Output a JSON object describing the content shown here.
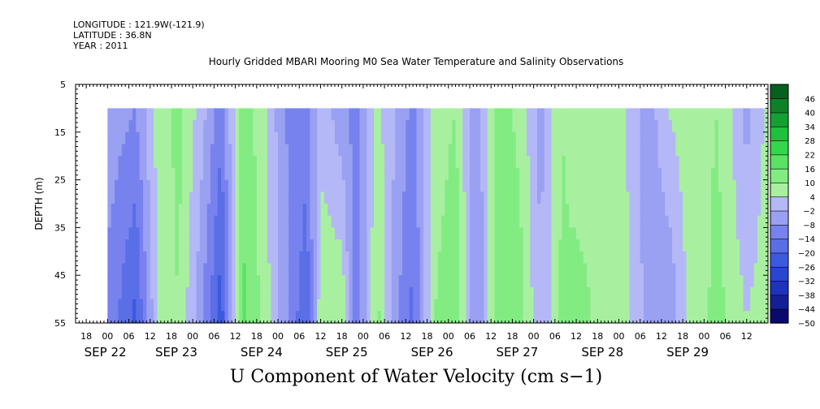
{
  "header": {
    "longitude": "LONGITUDE : 121.9W(-121.9)",
    "latitude": "LATITUDE : 36.8N",
    "year": "YEAR : 2011"
  },
  "chart_data": {
    "type": "heatmap",
    "title": "Hourly Gridded MBARI Mooring M0 Sea Water Temperature and Salinity Observations",
    "xlabel": "U Component of Water Velocity (cm s−1)",
    "ylabel": "DEPTH (m)",
    "ylim": [
      5,
      55
    ],
    "y_inverted": true,
    "yticks": [
      5,
      15,
      25,
      35,
      45,
      55
    ],
    "data_depth_range": [
      10,
      55
    ],
    "x_range_hours": [
      -9,
      186
    ],
    "data_hour_range": [
      0,
      186
    ],
    "hour_ticks": [
      -6,
      0,
      6,
      12,
      18,
      24,
      30,
      36,
      42,
      48,
      54,
      60,
      66,
      72,
      78,
      84,
      90,
      96,
      102,
      108,
      114,
      120,
      126,
      132,
      138,
      144,
      150,
      156,
      162,
      168,
      174,
      180
    ],
    "hour_tick_labels": [
      "18",
      "00",
      "06",
      "12",
      "18",
      "00",
      "06",
      "12",
      "18",
      "00",
      "06",
      "12",
      "18",
      "00",
      "06",
      "12",
      "18",
      "00",
      "06",
      "12",
      "18",
      "00",
      "06",
      "12",
      "18",
      "00",
      "06",
      "12",
      "18",
      "00",
      "06",
      "12"
    ],
    "day_labels": [
      {
        "hour": -2,
        "label": "SEP 22"
      },
      {
        "hour": 18,
        "label": "SEP 23"
      },
      {
        "hour": 42,
        "label": "SEP 24"
      },
      {
        "hour": 66,
        "label": "SEP 25"
      },
      {
        "hour": 90,
        "label": "SEP 26"
      },
      {
        "hour": 114,
        "label": "SEP 27"
      },
      {
        "hour": 138,
        "label": "SEP 28"
      },
      {
        "hour": 162,
        "label": "SEP 29"
      }
    ],
    "colorbar": {
      "levels": [
        -50,
        -44,
        -38,
        -32,
        -26,
        -20,
        -14,
        -8,
        -2,
        4,
        10,
        16,
        22,
        28,
        34,
        40,
        46
      ],
      "labels": [
        "46",
        "40",
        "34",
        "28",
        "22",
        "16",
        "10",
        "4",
        "−2",
        "−8",
        "−14",
        "−20",
        "−26",
        "−32",
        "−38",
        "−44",
        "−50"
      ],
      "colors_low_to_high": [
        "#0a0a6e",
        "#141e96",
        "#1e32be",
        "#2846d2",
        "#3c5ae0",
        "#5a6ee6",
        "#7882ee",
        "#9aa0f2",
        "#b4b8f6",
        "#a8f0a0",
        "#82ec82",
        "#5ae264",
        "#32d84a",
        "#1ec03c",
        "#14a032",
        "#0e8028",
        "#08601e"
      ]
    },
    "velocity_by_hour": [
      {
        "hour": 0,
        "surface": -4,
        "bottom": -10
      },
      {
        "hour": 8,
        "surface": -8,
        "bottom": -22
      },
      {
        "hour": 14,
        "surface": 6,
        "bottom": 4
      },
      {
        "hour": 20,
        "surface": 12,
        "bottom": 10
      },
      {
        "hour": 26,
        "surface": 2,
        "bottom": -6
      },
      {
        "hour": 32,
        "surface": -12,
        "bottom": -24
      },
      {
        "hour": 38,
        "surface": 14,
        "bottom": 18
      },
      {
        "hour": 44,
        "surface": 6,
        "bottom": 8
      },
      {
        "hour": 50,
        "surface": -8,
        "bottom": -6
      },
      {
        "hour": 56,
        "surface": -10,
        "bottom": -20
      },
      {
        "hour": 60,
        "surface": 2,
        "bottom": 8
      },
      {
        "hour": 66,
        "surface": -6,
        "bottom": 10
      },
      {
        "hour": 70,
        "surface": -10,
        "bottom": -14
      },
      {
        "hour": 76,
        "surface": 6,
        "bottom": 12
      },
      {
        "hour": 82,
        "surface": -4,
        "bottom": -8
      },
      {
        "hour": 86,
        "surface": -10,
        "bottom": -16
      },
      {
        "hour": 92,
        "surface": 6,
        "bottom": 10
      },
      {
        "hour": 98,
        "surface": 10,
        "bottom": 16
      },
      {
        "hour": 104,
        "surface": -6,
        "bottom": -10
      },
      {
        "hour": 110,
        "surface": 14,
        "bottom": 16
      },
      {
        "hour": 116,
        "surface": 8,
        "bottom": 14
      },
      {
        "hour": 122,
        "surface": -4,
        "bottom": -2
      },
      {
        "hour": 128,
        "surface": 10,
        "bottom": 12
      },
      {
        "hour": 132,
        "surface": 4,
        "bottom": 14
      },
      {
        "hour": 138,
        "surface": 10,
        "bottom": 8
      },
      {
        "hour": 146,
        "surface": 4,
        "bottom": 6
      },
      {
        "hour": 152,
        "surface": -6,
        "bottom": -4
      },
      {
        "hour": 158,
        "surface": 4,
        "bottom": -8
      },
      {
        "hour": 164,
        "surface": 8,
        "bottom": 6
      },
      {
        "hour": 172,
        "surface": 10,
        "bottom": 12
      },
      {
        "hour": 180,
        "surface": -4,
        "bottom": 4
      },
      {
        "hour": 186,
        "surface": 6,
        "bottom": 8
      }
    ]
  }
}
